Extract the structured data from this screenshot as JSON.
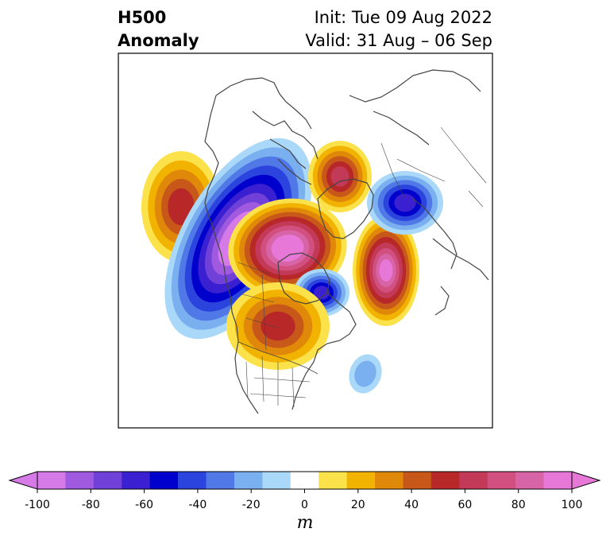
{
  "title": {
    "left_line1": "H500",
    "left_line2": "Anomaly",
    "right_line1": "Init: Tue 09 Aug 2022",
    "right_line2": "Valid: 31 Aug – 06 Sep"
  },
  "map": {
    "projection": "north-polar-stereographic",
    "region": "Northern Hemisphere (North America, Arctic, Greenland, Eurasia)",
    "anomaly_centers": [
      {
        "location": "Gulf of Alaska / North Pacific",
        "value": 50,
        "sign": "positive"
      },
      {
        "location": "Western Canada / Alaska",
        "value": -100,
        "sign": "negative"
      },
      {
        "location": "Canadian Arctic Archipelago",
        "value": 100,
        "sign": "positive"
      },
      {
        "location": "Hudson Bay / Labrador",
        "value": -60,
        "sign": "negative"
      },
      {
        "location": "North Atlantic / Iceland",
        "value": 90,
        "sign": "positive"
      },
      {
        "location": "Siberian Arctic",
        "value": 60,
        "sign": "positive"
      },
      {
        "location": "Central Siberia",
        "value": -60,
        "sign": "negative"
      },
      {
        "location": "Central Canada / Northern Plains",
        "value": 50,
        "sign": "positive"
      },
      {
        "location": "Western Atlantic",
        "value": -20,
        "sign": "negative"
      }
    ]
  },
  "colorbar": {
    "unit": "m",
    "extend": "both",
    "tick_labels": [
      "-100",
      "-80",
      "-60",
      "-40",
      "-20",
      "0",
      "20",
      "40",
      "60",
      "80",
      "100"
    ],
    "levels": [
      -100,
      -90,
      -80,
      -70,
      -60,
      -50,
      -40,
      -30,
      -20,
      -10,
      10,
      20,
      30,
      40,
      50,
      60,
      70,
      80,
      90,
      100
    ],
    "colors": [
      "#d67ae8",
      "#a05ae0",
      "#7040d8",
      "#3a20d0",
      "#0000cc",
      "#2a44dd",
      "#5078e6",
      "#7ab0f0",
      "#aad8f8",
      "#ffffff",
      "#fce24a",
      "#f1b300",
      "#e0880a",
      "#c8581a",
      "#b82828",
      "#c23a58",
      "#d25080",
      "#d864a8",
      "#e878d8"
    ],
    "min_color": "#d67ae8",
    "max_color": "#e878d8"
  }
}
